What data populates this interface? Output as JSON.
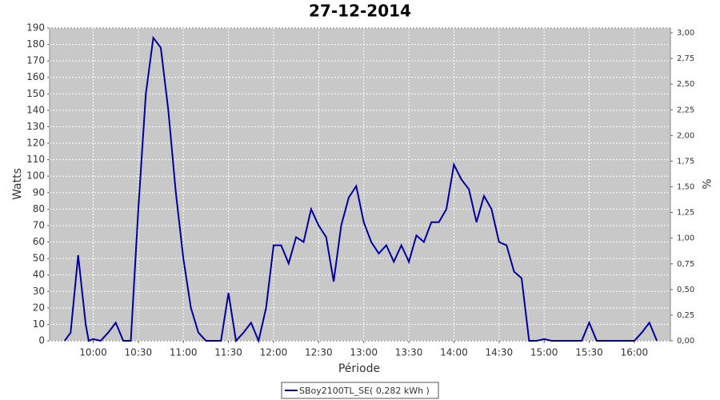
{
  "chart_data": {
    "type": "line",
    "title": "27-12-2014",
    "x_label": "Période",
    "y_label": "Watts",
    "y2_label": "%",
    "x": [
      "09:41",
      "09:45",
      "09:50",
      "09:55",
      "09:57",
      "10:00",
      "10:05",
      "10:10",
      "10:15",
      "10:20",
      "10:25",
      "10:30",
      "10:35",
      "10:40",
      "10:45",
      "10:50",
      "10:55",
      "11:00",
      "11:05",
      "11:10",
      "11:15",
      "11:20",
      "11:25",
      "11:30",
      "11:35",
      "11:40",
      "11:45",
      "11:50",
      "11:55",
      "12:00",
      "12:05",
      "12:10",
      "12:15",
      "12:20",
      "12:25",
      "12:30",
      "12:35",
      "12:40",
      "12:45",
      "12:50",
      "12:55",
      "13:00",
      "13:05",
      "13:10",
      "13:15",
      "13:20",
      "13:25",
      "13:30",
      "13:35",
      "13:40",
      "13:45",
      "13:50",
      "13:55",
      "14:00",
      "14:05",
      "14:10",
      "14:15",
      "14:20",
      "14:25",
      "14:30",
      "14:35",
      "14:40",
      "14:45",
      "14:50",
      "14:55",
      "15:00",
      "15:05",
      "15:10",
      "15:15",
      "15:20",
      "15:25",
      "15:30",
      "15:35",
      "15:40",
      "15:45",
      "15:50",
      "15:55",
      "16:00",
      "16:05",
      "16:10",
      "16:15"
    ],
    "series": [
      {
        "name": "SBoy2100TL_SE( 0,282 kWh )",
        "color": "#0000a0",
        "values": [
          0,
          5,
          52,
          10,
          0,
          1,
          0,
          5,
          11,
          0,
          0,
          80,
          150,
          184,
          178,
          140,
          90,
          50,
          20,
          5,
          0,
          0,
          0,
          29,
          0,
          5,
          11,
          0,
          20,
          58,
          58,
          47,
          63,
          60,
          80,
          70,
          63,
          36,
          70,
          87,
          94,
          72,
          60,
          53,
          58,
          48,
          58,
          48,
          64,
          60,
          72,
          72,
          80,
          107,
          98,
          92,
          72,
          88,
          80,
          60,
          58,
          42,
          38,
          0,
          0,
          1,
          0,
          0,
          0,
          0,
          0,
          11,
          0,
          0,
          0,
          0,
          0,
          0,
          5,
          11,
          0
        ]
      }
    ],
    "xlim": [
      "09:31",
      "16:24"
    ],
    "xticks": [
      "10:00",
      "10:30",
      "11:00",
      "11:30",
      "12:00",
      "12:30",
      "13:00",
      "13:30",
      "14:00",
      "14:30",
      "15:00",
      "15:30",
      "16:00"
    ],
    "ylim": [
      0,
      190
    ],
    "yticks": [
      0,
      10,
      20,
      30,
      40,
      50,
      60,
      70,
      80,
      90,
      100,
      110,
      120,
      130,
      140,
      150,
      160,
      170,
      180,
      190
    ],
    "y2lim": [
      0,
      3
    ],
    "y2ticks": [
      {
        "value": 0,
        "label": "0,00"
      },
      {
        "value": 0.25,
        "label": "0,25"
      },
      {
        "value": 0.5,
        "label": "0,50"
      },
      {
        "value": 0.75,
        "label": "0,75"
      },
      {
        "value": 1,
        "label": "1,00"
      },
      {
        "value": 1.25,
        "label": "1,25"
      },
      {
        "value": 1.5,
        "label": "1,50"
      },
      {
        "value": 1.75,
        "label": "1,75"
      },
      {
        "value": 2,
        "label": "2,00"
      },
      {
        "value": 2.25,
        "label": "2,25"
      },
      {
        "value": 2.5,
        "label": "2,50"
      },
      {
        "value": 2.75,
        "label": "2,75"
      },
      {
        "value": 3,
        "label": "3,00"
      }
    ],
    "grid": true
  }
}
